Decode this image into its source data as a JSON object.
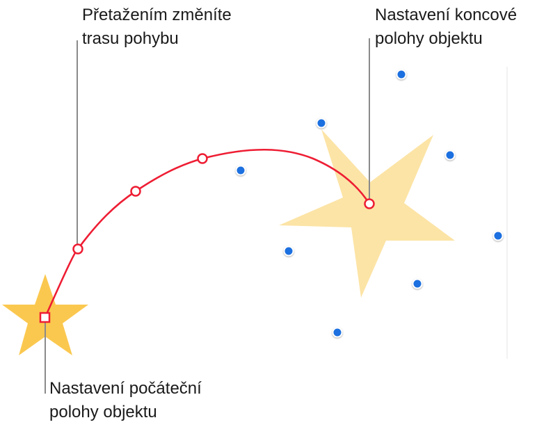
{
  "callouts": {
    "drag_path": {
      "line1": "Přetažením změníte",
      "line2": "trasu pohybu"
    },
    "end_position": {
      "line1": "Nastavení koncové",
      "line2": "polohy objektu"
    },
    "start_position": {
      "line1": "Nastavení počáteční",
      "line2": "polohy objektu"
    }
  },
  "colors": {
    "start_star": "#FBC84F",
    "end_star": "#FCE4A6",
    "motion_path": "#EE1D33",
    "selection_handle": "#1D6FE0",
    "leader_line": "#8A8A8A"
  }
}
